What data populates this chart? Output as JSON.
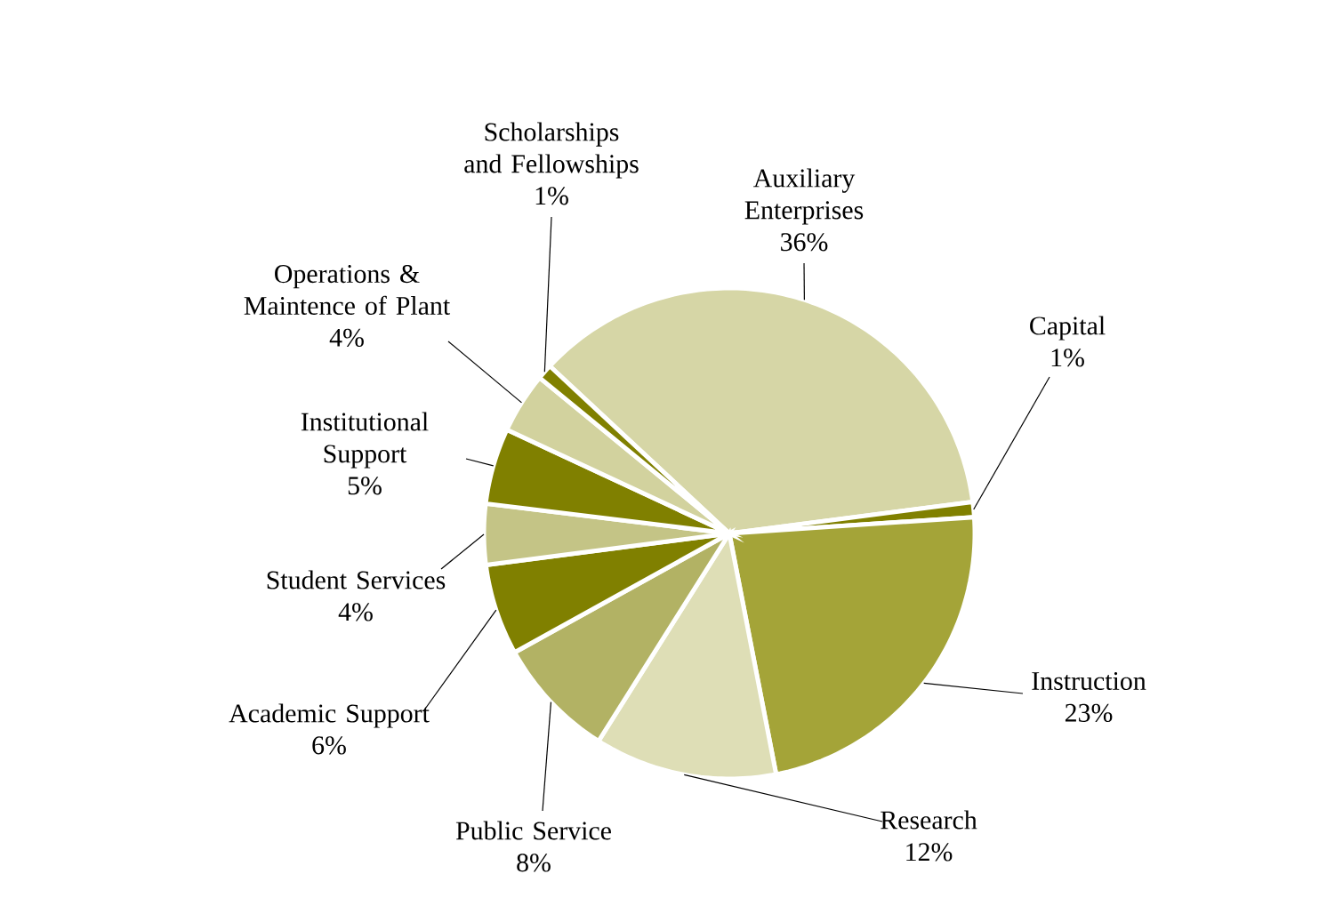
{
  "chart_data": {
    "type": "pie",
    "categories": [
      "Auxiliary Enterprises",
      "Capital",
      "Instruction",
      "Research",
      "Public Service",
      "Academic Support",
      "Student Services",
      "Institutional Support",
      "Operations & Maintence of Plant",
      "Scholarships and Fellowships"
    ],
    "values": [
      36,
      1,
      23,
      12,
      8,
      6,
      4,
      5,
      4,
      1
    ],
    "value_labels": [
      "36%",
      "1%",
      "23%",
      "12%",
      "8%",
      "6%",
      "4%",
      "5%",
      "4%",
      "1%"
    ],
    "colors": [
      "#d6d6a6",
      "#808000",
      "#a4a438",
      "#dedeb6",
      "#b2b264",
      "#808000",
      "#c4c486",
      "#808000",
      "#d2d29e",
      "#808000"
    ]
  }
}
